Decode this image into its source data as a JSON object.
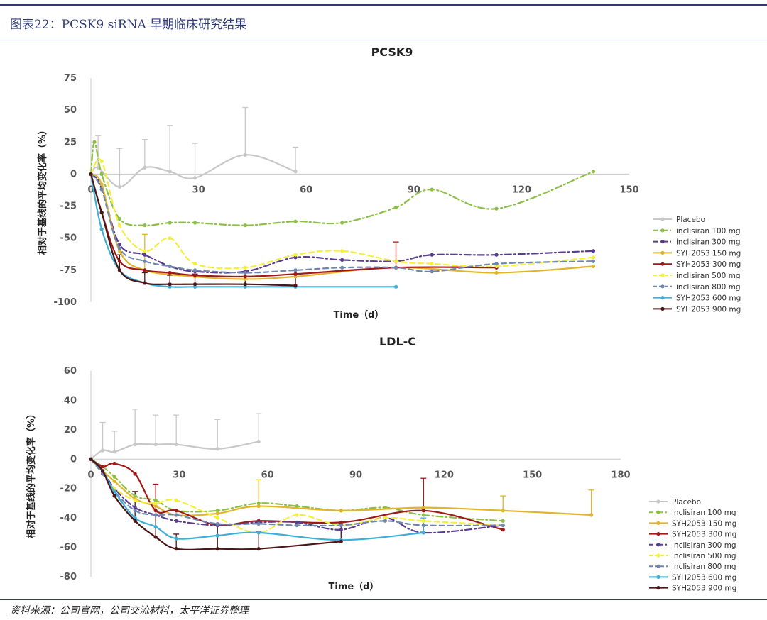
{
  "header": {
    "figure_title": "图表22：PCSK9 siRNA 早期临床研究结果",
    "source": "资料来源：公司官网，公司交流材料，太平洋证券整理"
  },
  "colors": {
    "Placebo": "#c8c8c8",
    "inclisiran 100 mg": "#8cbf47",
    "inclisiran 300 mg": "#5a3d8f",
    "SYH2053 150 mg": "#e2b42b",
    "SYH2053 300 mg": "#a01818",
    "inclisiran 500 mg": "#f5ef3c",
    "inclisiran 800 mg": "#6f86ae",
    "SYH2053 600 mg": "#3eaed6",
    "SYH2053 900 mg": "#4a1616"
  },
  "chart_data": [
    {
      "type": "line",
      "title": "PCSK9",
      "xlabel": "Time（d）",
      "ylabel": "相对于基线的平均变化率（%）",
      "xlim": [
        0,
        150
      ],
      "ylim": [
        -100,
        75
      ],
      "xticks": [
        "0",
        "30",
        "60",
        "90",
        "120",
        "150"
      ],
      "yticks": [
        "75",
        "50",
        "25",
        "0",
        "-25",
        "-50",
        "-75",
        "-100"
      ],
      "grid": false,
      "legend": "right",
      "series": [
        {
          "name": "Placebo",
          "dash": "solid",
          "marker": true,
          "x": [
            0,
            2,
            8,
            15,
            22,
            29,
            43,
            57
          ],
          "y": [
            0,
            5,
            -10,
            5,
            2,
            -3,
            15,
            2
          ]
        },
        {
          "name": "inclisiran 100 mg",
          "dash": "dashdot",
          "marker": true,
          "x": [
            0,
            1,
            3,
            8,
            15,
            22,
            29,
            43,
            57,
            70,
            85,
            95,
            113,
            140
          ],
          "y": [
            0,
            25,
            0,
            -35,
            -40,
            -38,
            -38,
            -40,
            -37,
            -38,
            -26,
            -12,
            -27,
            2
          ]
        },
        {
          "name": "inclisiran 300 mg",
          "dash": "dashdot",
          "marker": true,
          "x": [
            0,
            3,
            8,
            15,
            22,
            29,
            43,
            57,
            70,
            85,
            95,
            113,
            140
          ],
          "y": [
            0,
            -10,
            -55,
            -63,
            -72,
            -76,
            -76,
            -65,
            -67,
            -68,
            -63,
            -63,
            -60
          ]
        },
        {
          "name": "SYH2053 150 mg",
          "dash": "solid",
          "marker": true,
          "x": [
            0,
            3,
            8,
            15,
            29,
            43,
            57,
            85,
            113,
            140
          ],
          "y": [
            0,
            -8,
            -60,
            -75,
            -80,
            -82,
            -80,
            -73,
            -77,
            -72
          ]
        },
        {
          "name": "SYH2053 300 mg",
          "dash": "solid",
          "marker": true,
          "x": [
            0,
            3,
            8,
            15,
            22,
            29,
            43,
            57,
            85,
            113
          ],
          "y": [
            0,
            -30,
            -68,
            -75,
            -77,
            -79,
            -80,
            -78,
            -73,
            -73
          ]
        },
        {
          "name": "inclisiran 500 mg",
          "dash": "dash",
          "marker": true,
          "x": [
            0,
            3,
            8,
            15,
            22,
            29,
            43,
            57,
            70,
            85,
            95,
            113,
            140
          ],
          "y": [
            0,
            10,
            -40,
            -60,
            -50,
            -70,
            -73,
            -63,
            -60,
            -68,
            -70,
            -72,
            -65
          ]
        },
        {
          "name": "inclisiran 800 mg",
          "dash": "dash",
          "marker": true,
          "x": [
            0,
            3,
            8,
            15,
            22,
            29,
            43,
            57,
            70,
            85,
            95,
            113,
            140
          ],
          "y": [
            0,
            -12,
            -58,
            -68,
            -72,
            -75,
            -77,
            -75,
            -73,
            -73,
            -76,
            -70,
            -68
          ]
        },
        {
          "name": "SYH2053 600 mg",
          "dash": "solid",
          "marker": true,
          "x": [
            0,
            3,
            8,
            15,
            22,
            29,
            43,
            57,
            85
          ],
          "y": [
            0,
            -43,
            -75,
            -85,
            -88,
            -88,
            -88,
            -88,
            -88
          ]
        },
        {
          "name": "SYH2053 900 mg",
          "dash": "solid",
          "marker": true,
          "x": [
            0,
            3,
            8,
            15,
            22,
            29,
            43,
            57
          ],
          "y": [
            0,
            -30,
            -75,
            -85,
            -86,
            -86,
            -86,
            -87
          ]
        }
      ],
      "error_bars": [
        {
          "series": "Placebo",
          "x": 2,
          "y": 5,
          "err": 25
        },
        {
          "series": "Placebo",
          "x": 8,
          "y": -10,
          "err": 30
        },
        {
          "series": "Placebo",
          "x": 15,
          "y": 5,
          "err": 22
        },
        {
          "series": "Placebo",
          "x": 22,
          "y": 2,
          "err": 36
        },
        {
          "series": "Placebo",
          "x": 29,
          "y": -3,
          "err": 27
        },
        {
          "series": "Placebo",
          "x": 43,
          "y": 15,
          "err": 37
        },
        {
          "series": "Placebo",
          "x": 57,
          "y": 2,
          "err": 19
        },
        {
          "series": "SYH2053 150 mg",
          "x": 15,
          "y": -75,
          "err": 28
        },
        {
          "series": "SYH2053 900 mg",
          "x": 8,
          "y": -75,
          "err": 12
        },
        {
          "series": "SYH2053 900 mg",
          "x": 15,
          "y": -85,
          "err": 8
        },
        {
          "series": "SYH2053 900 mg",
          "x": 22,
          "y": -86,
          "err": 7
        },
        {
          "series": "SYH2053 900 mg",
          "x": 29,
          "y": -86,
          "err": 8
        },
        {
          "series": "SYH2053 900 mg",
          "x": 43,
          "y": -86,
          "err": 6
        },
        {
          "series": "SYH2053 900 mg",
          "x": 57,
          "y": -87,
          "err": 7
        },
        {
          "series": "SYH2053 300 mg",
          "x": 85,
          "y": -73,
          "err": 20
        }
      ]
    },
    {
      "type": "line",
      "title": "LDL-C",
      "xlabel": "Time（d）",
      "ylabel": "相对于基线的平均变化率（%）",
      "xlim": [
        0,
        180
      ],
      "ylim": [
        -80,
        60
      ],
      "xticks": [
        "0",
        "30",
        "60",
        "90",
        "120",
        "150",
        "180"
      ],
      "yticks": [
        "60",
        "40",
        "20",
        "0",
        "-20",
        "-40",
        "-60",
        "-80"
      ],
      "grid": false,
      "legend": "right",
      "series": [
        {
          "name": "Placebo",
          "dash": "solid",
          "marker": true,
          "x": [
            0,
            4,
            8,
            15,
            22,
            29,
            43,
            57
          ],
          "y": [
            0,
            6,
            5,
            10,
            10,
            10,
            7,
            12
          ]
        },
        {
          "name": "inclisiran 100 mg",
          "dash": "dashdot",
          "marker": true,
          "x": [
            0,
            4,
            8,
            15,
            22,
            29,
            43,
            57,
            70,
            85,
            100,
            113,
            140
          ],
          "y": [
            0,
            -5,
            -12,
            -25,
            -28,
            -35,
            -35,
            -30,
            -32,
            -35,
            -33,
            -38,
            -42
          ]
        },
        {
          "name": "SYH2053 150 mg",
          "dash": "solid",
          "marker": true,
          "x": [
            0,
            4,
            8,
            15,
            22,
            29,
            43,
            57,
            85,
            113,
            140,
            170
          ],
          "y": [
            0,
            -8,
            -15,
            -27,
            -32,
            -38,
            -37,
            -32,
            -35,
            -33,
            -35,
            -38
          ]
        },
        {
          "name": "SYH2053 300 mg",
          "dash": "solid",
          "marker": true,
          "x": [
            0,
            4,
            8,
            15,
            22,
            29,
            43,
            57,
            85,
            113,
            140
          ],
          "y": [
            0,
            -5,
            -3,
            -10,
            -35,
            -35,
            -45,
            -42,
            -43,
            -35,
            -48
          ]
        },
        {
          "name": "inclisiran 300 mg",
          "dash": "dashdot",
          "marker": true,
          "x": [
            0,
            4,
            8,
            15,
            22,
            29,
            43,
            57,
            70,
            85,
            100,
            113,
            140
          ],
          "y": [
            0,
            -8,
            -20,
            -33,
            -38,
            -42,
            -45,
            -43,
            -43,
            -48,
            -40,
            -50,
            -45
          ]
        },
        {
          "name": "inclisiran 500 mg",
          "dash": "dash",
          "marker": true,
          "x": [
            0,
            4,
            8,
            15,
            22,
            29,
            43,
            57,
            70,
            85,
            100,
            113,
            140
          ],
          "y": [
            0,
            -10,
            -20,
            -28,
            -30,
            -28,
            -40,
            -50,
            -38,
            -45,
            -40,
            -42,
            -45
          ]
        },
        {
          "name": "inclisiran 800 mg",
          "dash": "dash",
          "marker": true,
          "x": [
            0,
            4,
            8,
            15,
            22,
            29,
            43,
            57,
            70,
            85,
            100,
            113,
            140
          ],
          "y": [
            0,
            -10,
            -22,
            -35,
            -38,
            -38,
            -44,
            -44,
            -45,
            -45,
            -42,
            -45,
            -45
          ]
        },
        {
          "name": "SYH2053 600 mg",
          "dash": "solid",
          "marker": true,
          "x": [
            0,
            4,
            8,
            15,
            22,
            29,
            43,
            57,
            85,
            113
          ],
          "y": [
            0,
            -8,
            -22,
            -40,
            -46,
            -54,
            -52,
            -50,
            -55,
            -50
          ]
        },
        {
          "name": "SYH2053 900 mg",
          "dash": "solid",
          "marker": true,
          "x": [
            0,
            4,
            8,
            15,
            22,
            29,
            43,
            57,
            85
          ],
          "y": [
            0,
            -8,
            -25,
            -42,
            -53,
            -61,
            -61,
            -61,
            -56
          ]
        }
      ],
      "error_bars": [
        {
          "series": "Placebo",
          "x": 4,
          "y": 6,
          "err": 19
        },
        {
          "series": "Placebo",
          "x": 8,
          "y": 5,
          "err": 14
        },
        {
          "series": "Placebo",
          "x": 15,
          "y": 10,
          "err": 24
        },
        {
          "series": "Placebo",
          "x": 22,
          "y": 10,
          "err": 20
        },
        {
          "series": "Placebo",
          "x": 29,
          "y": 10,
          "err": 20
        },
        {
          "series": "Placebo",
          "x": 43,
          "y": 7,
          "err": 20
        },
        {
          "series": "Placebo",
          "x": 57,
          "y": 12,
          "err": 19
        },
        {
          "series": "SYH2053 900 mg",
          "x": 15,
          "y": -42,
          "err": 20
        },
        {
          "series": "SYH2053 900 mg",
          "x": 22,
          "y": -53,
          "err": 15
        },
        {
          "series": "SYH2053 900 mg",
          "x": 29,
          "y": -61,
          "err": 10
        },
        {
          "series": "SYH2053 900 mg",
          "x": 43,
          "y": -61,
          "err": 16
        },
        {
          "series": "SYH2053 900 mg",
          "x": 57,
          "y": -61,
          "err": 12
        },
        {
          "series": "SYH2053 900 mg",
          "x": 85,
          "y": -56,
          "err": 12
        },
        {
          "series": "SYH2053 300 mg",
          "x": 22,
          "y": -35,
          "err": 18
        },
        {
          "series": "SYH2053 300 mg",
          "x": 113,
          "y": -35,
          "err": 22
        },
        {
          "series": "SYH2053 150 mg",
          "x": 57,
          "y": -32,
          "err": 18
        },
        {
          "series": "SYH2053 150 mg",
          "x": 140,
          "y": -35,
          "err": 10
        },
        {
          "series": "SYH2053 150 mg",
          "x": 170,
          "y": -38,
          "err": 17
        },
        {
          "series": "SYH2053 600 mg",
          "x": 113,
          "y": -50,
          "err": 10
        }
      ]
    }
  ]
}
